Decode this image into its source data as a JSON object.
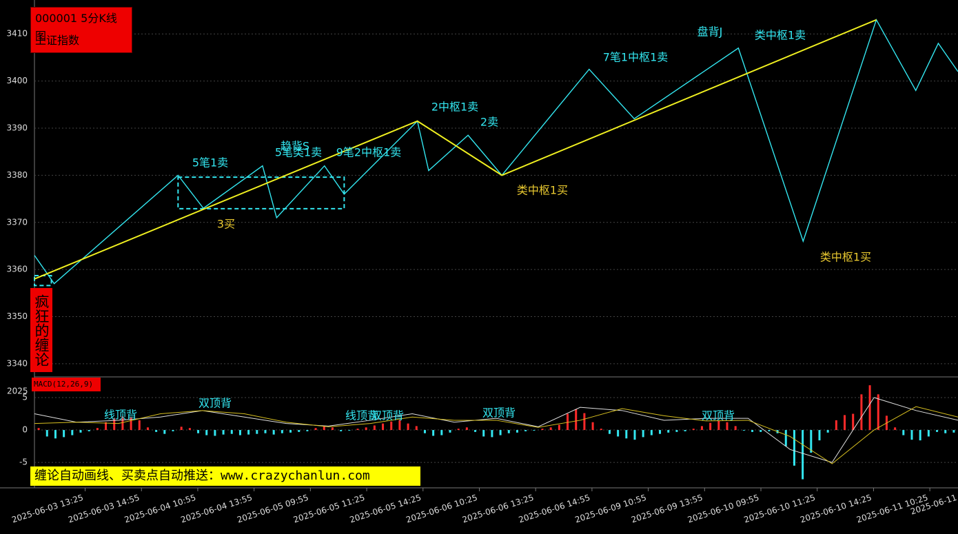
{
  "chart_data": {
    "type": "line",
    "title": "000001 5分K线图",
    "subtitle": "上证指数",
    "side_label": "疯狂的缠论",
    "xlim": [
      0,
      328
    ],
    "ylim": [
      3337.5,
      3417.2
    ],
    "yticks": [
      3340,
      3350,
      3360,
      3370,
      3380,
      3390,
      3400,
      3410
    ],
    "grid": true,
    "xticks": [
      {
        "value": 18,
        "label": "2025-06-03 13:25"
      },
      {
        "value": 38,
        "label": "2025-06-03 14:55"
      },
      {
        "value": 58,
        "label": "2025-06-04 10:55"
      },
      {
        "value": 78,
        "label": "2025-06-04 13:55"
      },
      {
        "value": 98,
        "label": "2025-06-05 09:55"
      },
      {
        "value": 118,
        "label": "2025-06-05 11:25"
      },
      {
        "value": 138,
        "label": "2025-06-05 14:25"
      },
      {
        "value": 158,
        "label": "2025-06-06 10:25"
      },
      {
        "value": 178,
        "label": "2025-06-06 13:25"
      },
      {
        "value": 198,
        "label": "2025-06-06 14:55"
      },
      {
        "value": 218,
        "label": "2025-06-09 10:55"
      },
      {
        "value": 238,
        "label": "2025-06-09 13:55"
      },
      {
        "value": 258,
        "label": "2025-06-10 09:55"
      },
      {
        "value": 278,
        "label": "2025-06-10 11:25"
      },
      {
        "value": 298,
        "label": "2025-06-10 14:25"
      },
      {
        "value": 318,
        "label": "2025-06-11 10:25"
      },
      {
        "value": 338,
        "label": "2025-06-11"
      }
    ],
    "strokes": {
      "color": "#33e6f0",
      "x": [
        0,
        7,
        51,
        60,
        81,
        86,
        103,
        110,
        136,
        140,
        154,
        166,
        197,
        213,
        250,
        273,
        299,
        313,
        321,
        328
      ],
      "y": [
        3363,
        3357,
        3380,
        3373,
        3382,
        3371,
        3382,
        3376,
        3391.5,
        3381,
        3388.5,
        3380,
        3402.5,
        3392,
        3407,
        3366,
        3413,
        3398,
        3408,
        3402
      ]
    },
    "segments": {
      "color": "#f0f020",
      "x": [
        0,
        136,
        166,
        299
      ],
      "y": [
        3358,
        3391.5,
        3380,
        3413
      ]
    },
    "zhongshu": {
      "color": "#33e6f0",
      "boxes": [
        {
          "x": [
            0,
            6
          ],
          "y": [
            3356.6,
            3358.7
          ]
        },
        {
          "x": [
            51,
            110
          ],
          "y": [
            3372.9,
            3379.6
          ]
        },
        {
          "x": [
            197,
            273
          ],
          "y": [
            3402.1,
            3402.1
          ]
        }
      ]
    },
    "annotations": [
      {
        "text": "5笔1卖",
        "color": "#33e6f0"
      },
      {
        "text": "趋背S",
        "color": "#33e6f0"
      },
      {
        "text": "5笔类1卖",
        "color": "#33e6f0"
      },
      {
        "text": "9笔2中枢1卖",
        "color": "#33e6f0"
      },
      {
        "text": "2中枢1卖",
        "color": "#33e6f0"
      },
      {
        "text": "2卖",
        "color": "#33e6f0"
      },
      {
        "text": "7笔1中枢1卖",
        "color": "#33e6f0"
      },
      {
        "text": "盘背J",
        "color": "#33e6f0"
      },
      {
        "text": "类中枢1卖",
        "color": "#33e6f0"
      },
      {
        "text": "3买",
        "color": "#e8c830"
      },
      {
        "text": "类中枢1买",
        "color": "#e8c830"
      },
      {
        "text": "类中枢1买",
        "color": "#e8c830"
      }
    ],
    "macd": {
      "title": "MACD(12,26,9)",
      "top_label": "2025",
      "ylim": [
        -8.6,
        7.55
      ],
      "yticks": [
        5,
        0,
        -5
      ],
      "histogram": {
        "up_color": "#ff2a2a",
        "down_color": "#33e6f0",
        "values": [
          0.3,
          -1.0,
          -1.3,
          -1.1,
          -0.8,
          -0.4,
          -0.2,
          0.3,
          1.2,
          1.8,
          2.1,
          2.0,
          1.5,
          0.4,
          -0.3,
          -0.6,
          -0.2,
          0.5,
          0.3,
          -0.5,
          -0.8,
          -0.9,
          -0.7,
          -0.6,
          -0.8,
          -0.7,
          -0.6,
          -0.5,
          -0.7,
          -0.5,
          -0.4,
          -0.3,
          -0.2,
          0.3,
          0.6,
          0.4,
          -0.2,
          -0.1,
          0.2,
          0.4,
          0.7,
          1.0,
          1.3,
          1.5,
          1.0,
          0.6,
          -0.5,
          -0.9,
          -0.8,
          -0.4,
          0.2,
          0.4,
          -0.3,
          -1.0,
          -1.1,
          -0.8,
          -0.5,
          -0.4,
          -0.2,
          -0.1,
          0.2,
          0.4,
          0.8,
          2.5,
          3.2,
          2.6,
          1.2,
          0.2,
          -0.6,
          -1.0,
          -1.3,
          -1.5,
          -1.1,
          -0.8,
          -0.6,
          -0.4,
          -0.3,
          -0.2,
          0.2,
          0.6,
          1.1,
          1.4,
          1.2,
          0.6,
          -0.1,
          -0.3,
          -0.3,
          -0.2,
          -0.5,
          -2.5,
          -5.5,
          -7.6,
          -3.5,
          -1.6,
          -0.4,
          1.5,
          2.3,
          2.5,
          5.5,
          6.9,
          5.5,
          2.2,
          0.4,
          -0.8,
          -1.5,
          -1.6,
          -1.0,
          -0.3,
          -0.5,
          -0.4
        ]
      },
      "dif": {
        "color": "#e0e0e0",
        "values": [
          2.5,
          1.2,
          1.5,
          2.0,
          3.0,
          2.0,
          1.0,
          0.6,
          1.5,
          2.5,
          1.2,
          1.8,
          0.5,
          3.5,
          3.0,
          1.5,
          1.8,
          1.8,
          -3.0,
          -5.0,
          5.0,
          3.0,
          1.5
        ]
      },
      "dea": {
        "color": "#d8c020",
        "values": [
          1.0,
          1.2,
          1.0,
          2.5,
          3.0,
          2.5,
          1.2,
          0.5,
          1.0,
          2.0,
          1.5,
          1.5,
          0.4,
          1.5,
          3.3,
          2.2,
          1.4,
          1.5,
          -1.0,
          -5.2,
          0.0,
          3.6,
          2.0
        ]
      },
      "annotations": [
        "线顶背",
        "双顶背",
        "线顶背",
        "双顶背",
        "双顶背",
        "双顶背"
      ]
    },
    "footer": "缠论自动画线、买卖点自动推送：www.crazychanlun.com"
  }
}
